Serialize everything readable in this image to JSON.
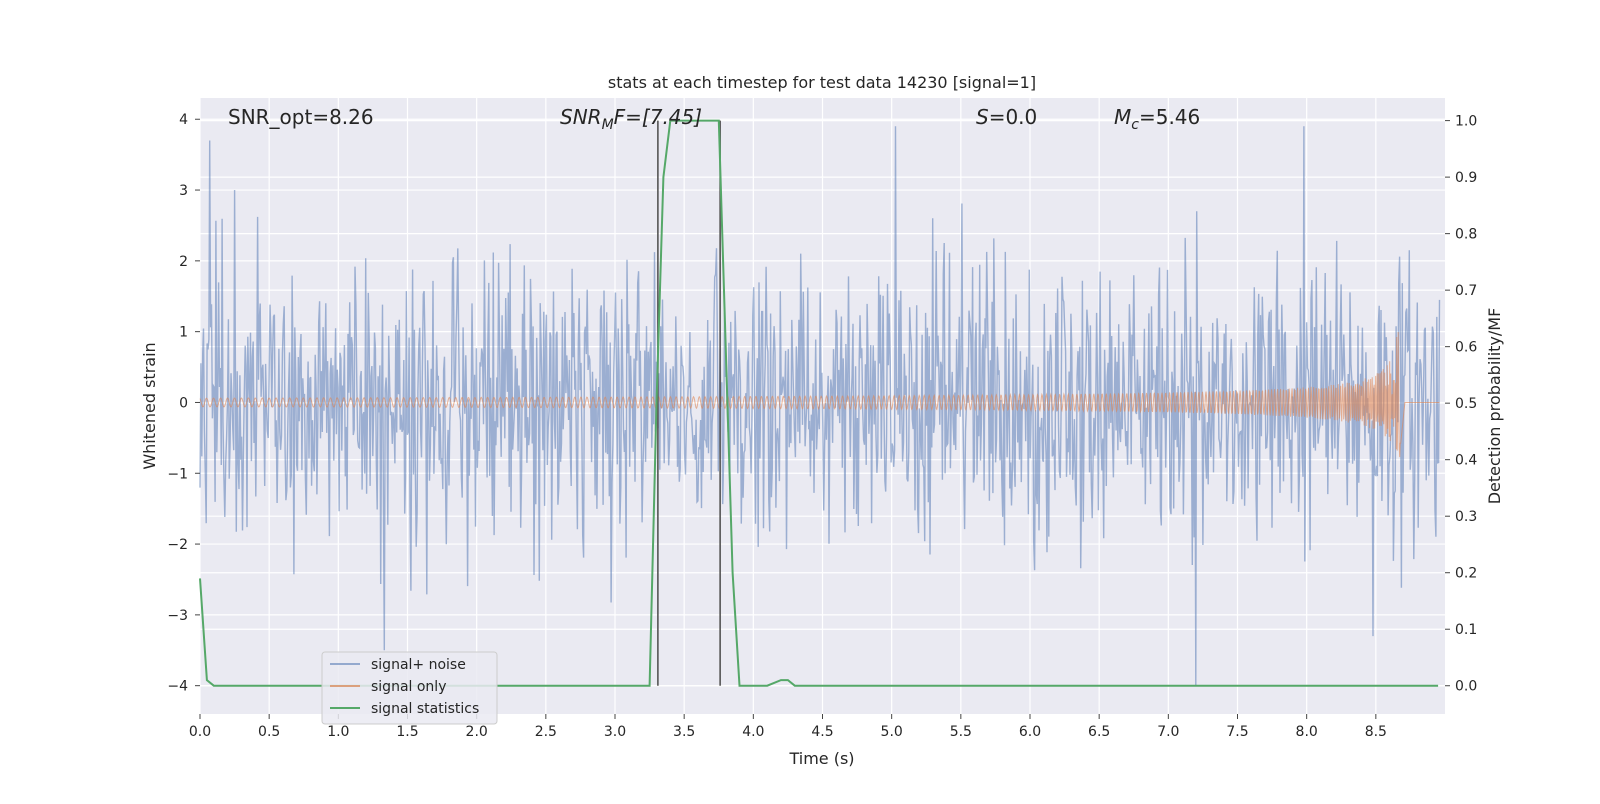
{
  "chart_data": {
    "type": "line",
    "title": "stats at each timestep for test data 14230 [signal=1]",
    "xlabel": "Time (s)",
    "ylabel_left": "Whitened strain",
    "ylabel_right": "Detection probability/MF",
    "xlim": [
      0.0,
      9.0
    ],
    "ylim_left": [
      -4.4,
      4.3
    ],
    "ylim_right": [
      -0.05,
      1.04
    ],
    "x_ticks": [
      "0.0",
      "0.5",
      "1.0",
      "1.5",
      "2.0",
      "2.5",
      "3.0",
      "3.5",
      "4.0",
      "4.5",
      "5.0",
      "5.5",
      "6.0",
      "6.5",
      "7.0",
      "7.5",
      "8.0",
      "8.5"
    ],
    "y_left_ticks": [
      "4",
      "3",
      "2",
      "1",
      "0",
      "−1",
      "−2",
      "−3",
      "−4"
    ],
    "y_right_ticks": [
      "1.0",
      "0.9",
      "0.8",
      "0.7",
      "0.6",
      "0.5",
      "0.4",
      "0.3",
      "0.2",
      "0.1",
      "0.0"
    ],
    "grid": true,
    "legend_position": "lower-left",
    "annotations": {
      "snr_opt": "SNR_opt=8.26",
      "snr_mf_base": "SNR",
      "snr_mf_sub": "M",
      "snr_mf_rest": "F=[7.45]",
      "s_base": "S",
      "s_rest": "=0.0",
      "mc_base": "M",
      "mc_sub": "c",
      "mc_rest": "=5.46"
    },
    "series": [
      {
        "name": "signal+ noise",
        "color": "#4c72b0",
        "axis": "left",
        "description_values": {
          "x_range": [
            0.0,
            9.0
          ],
          "typical_min": -2.0,
          "typical_max": 2.3,
          "peaks": [
            [
              0.07,
              3.7
            ],
            [
              0.25,
              3.0
            ],
            [
              5.03,
              3.9
            ],
            [
              7.98,
              3.9
            ],
            [
              7.2,
              -4.0
            ],
            [
              1.33,
              -3.5
            ],
            [
              8.48,
              -3.3
            ]
          ]
        }
      },
      {
        "name": "signal only",
        "color": "#dd8452",
        "axis": "left",
        "description_values": {
          "type": "chirp",
          "start_time": 0.0,
          "merger_time": 8.68,
          "amplitude_start": 0.02,
          "amplitude_peak": 1.0
        }
      },
      {
        "name": "signal statistics",
        "color": "#55a868",
        "axis": "right",
        "x": [
          0.0,
          0.05,
          0.1,
          0.15,
          3.25,
          3.3,
          3.35,
          3.4,
          3.75,
          3.8,
          3.85,
          3.9,
          4.1,
          4.2,
          4.25,
          4.3,
          4.4,
          8.95
        ],
        "y": [
          0.19,
          0.01,
          0.0,
          0.0,
          0.0,
          0.5,
          0.9,
          1.0,
          1.0,
          0.6,
          0.2,
          0.0,
          0.0,
          0.01,
          0.01,
          0.0,
          0.0,
          0.0
        ]
      }
    ],
    "vlines": [
      3.31,
      3.76
    ],
    "legend": [
      {
        "label": "signal+ noise",
        "color": "#4c72b0"
      },
      {
        "label": "signal only",
        "color": "#dd8452"
      },
      {
        "label": "signal statistics",
        "color": "#55a868"
      }
    ]
  }
}
